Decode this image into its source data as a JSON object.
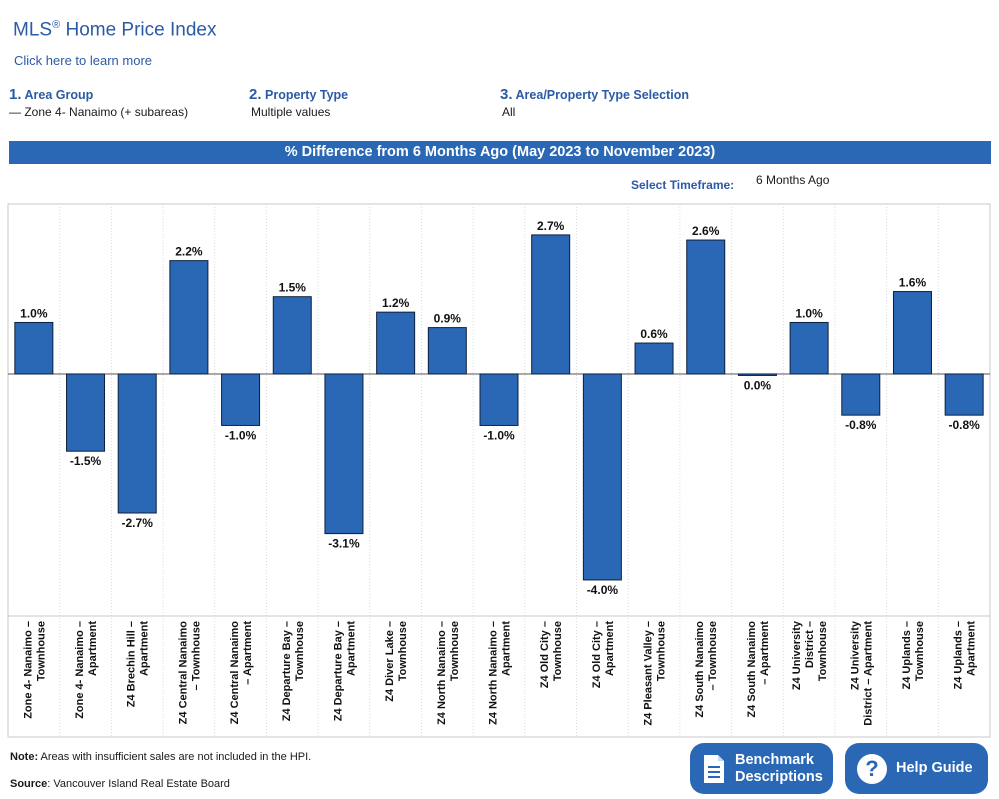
{
  "header": {
    "title": "MLS",
    "title_mark": "®",
    "title_rest": " Home Price Index",
    "learn_more": "Click here to learn more"
  },
  "filters": [
    {
      "num": "1.",
      "label": "Area Group",
      "value": "— Zone 4- Nanaimo (+ subareas)"
    },
    {
      "num": "2.",
      "label": "Property Type",
      "value": "Multiple values"
    },
    {
      "num": "3.",
      "label": "Area/Property Type Selection",
      "value": "All"
    }
  ],
  "banner": "% Difference from 6 Months Ago (May 2023 to November 2023)",
  "timeframe": {
    "label": "Select Timeframe:",
    "value": "6 Months Ago"
  },
  "colors": {
    "accent": "#2a68b6",
    "bar": "#2a68b6",
    "title": "#2b5aa6"
  },
  "chart_data": {
    "type": "bar",
    "categories": [
      [
        "Zone 4- Nanaimo –",
        "Townhouse"
      ],
      [
        "Zone 4- Nanaimo –",
        "Apartment"
      ],
      [
        "Z4 Brechin Hill –",
        "Apartment"
      ],
      [
        "Z4 Central Nanaimo",
        "– Townhouse"
      ],
      [
        "Z4 Central Nanaimo",
        "– Apartment"
      ],
      [
        "Z4 Departure Bay –",
        "Townhouse"
      ],
      [
        "Z4 Departure Bay –",
        "Apartment"
      ],
      [
        "Z4 Diver Lake –",
        "Townhouse"
      ],
      [
        "Z4 North Nanaimo –",
        "Townhouse"
      ],
      [
        "Z4 North Nanaimo –",
        "Apartment"
      ],
      [
        "Z4 Old City –",
        "Townhouse"
      ],
      [
        "Z4 Old City –",
        "Apartment"
      ],
      [
        "Z4 Pleasant Valley –",
        "Townhouse"
      ],
      [
        "Z4 South Nanaimo",
        "– Townhouse"
      ],
      [
        "Z4 South Nanaimo",
        "– Apartment"
      ],
      [
        "Z4 University",
        "District –",
        "Townhouse"
      ],
      [
        "Z4 University",
        "District – Apartment"
      ],
      [
        "Z4 Uplands –",
        "Townhouse"
      ],
      [
        "Z4 Uplands –",
        "Apartment"
      ]
    ],
    "values": [
      1.0,
      -1.5,
      -2.7,
      2.2,
      -1.0,
      1.5,
      -3.1,
      1.2,
      0.9,
      -1.0,
      2.7,
      -4.0,
      0.6,
      2.6,
      0.0,
      1.0,
      -0.8,
      1.6,
      -0.8
    ],
    "labels": [
      "1.0%",
      "-1.5%",
      "-2.7%",
      "2.2%",
      "-1.0%",
      "1.5%",
      "-3.1%",
      "1.2%",
      "0.9%",
      "-1.0%",
      "2.7%",
      "-4.0%",
      "0.6%",
      "2.6%",
      "0.0%",
      "1.0%",
      "-0.8%",
      "1.6%",
      "-0.8%"
    ],
    "unit": "%",
    "ylim": [
      -4.7,
      3.3
    ],
    "grid": true
  },
  "footer": {
    "note_label": "Note:",
    "note_text": " Areas with insufficient sales are not included in the HPI.",
    "source_label": "Source",
    "source_text": ": Vancouver Island Real Estate Board"
  },
  "buttons": {
    "benchmark_line1": "Benchmark",
    "benchmark_line2": "Descriptions",
    "help": "Help Guide"
  }
}
